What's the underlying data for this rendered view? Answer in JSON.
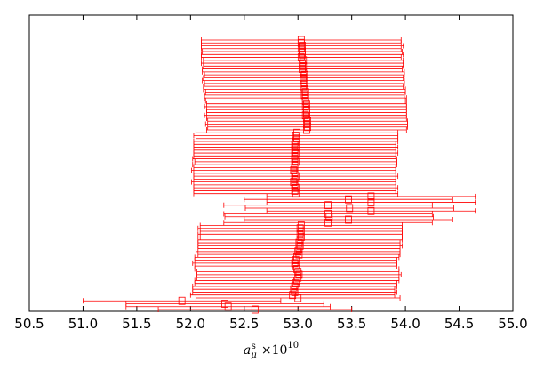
{
  "chart_data": {
    "type": "errorbar",
    "x_label": {
      "symbol": "a",
      "sub": "μ",
      "sup": "s",
      "factor": "×10",
      "exponent": "10"
    },
    "color": "#ff0000",
    "x": [
      53.03,
      53.03,
      53.04,
      53.03,
      53.04,
      53.04,
      53.03,
      53.05,
      53.04,
      53.05,
      53.04,
      53.05,
      53.06,
      53.05,
      53.05,
      53.06,
      53.05,
      53.06,
      53.07,
      53.06,
      53.07,
      53.07,
      53.08,
      53.07,
      53.08,
      53.08,
      53.07,
      53.08,
      53.09,
      53.08,
      53.09,
      53.08,
      52.99,
      52.98,
      52.99,
      52.98,
      52.97,
      52.98,
      52.97,
      52.98,
      52.97,
      52.97,
      52.98,
      52.97,
      52.97,
      52.96,
      52.97,
      52.98,
      52.97,
      52.96,
      52.97,
      52.98,
      52.97,
      52.98,
      53.68,
      53.47,
      53.68,
      53.28,
      53.48,
      53.68,
      53.28,
      53.29,
      53.47,
      53.28,
      53.03,
      53.02,
      53.03,
      53.02,
      53.03,
      53.02,
      53.01,
      53.02,
      53.01,
      53.0,
      53.01,
      52.99,
      52.98,
      52.97,
      52.98,
      52.99,
      53.0,
      53.01,
      53.0,
      52.99,
      52.98,
      52.97,
      52.96,
      52.97,
      52.95,
      53.0,
      51.92,
      52.32,
      52.35,
      52.6
    ],
    "xerr": [
      0.93,
      0.93,
      0.94,
      0.93,
      0.93,
      0.94,
      0.93,
      0.93,
      0.94,
      0.93,
      0.93,
      0.94,
      0.93,
      0.93,
      0.94,
      0.93,
      0.93,
      0.94,
      0.93,
      0.93,
      0.94,
      0.93,
      0.93,
      0.94,
      0.93,
      0.93,
      0.94,
      0.93,
      0.93,
      0.94,
      0.93,
      0.93,
      0.94,
      0.95,
      0.94,
      0.95,
      0.94,
      0.95,
      0.94,
      0.95,
      0.94,
      0.95,
      0.94,
      0.95,
      0.94,
      0.95,
      0.94,
      0.95,
      0.94,
      0.95,
      0.94,
      0.95,
      0.94,
      0.95,
      0.97,
      0.97,
      0.97,
      0.97,
      0.97,
      0.97,
      0.97,
      0.97,
      0.97,
      0.97,
      0.94,
      0.95,
      0.94,
      0.95,
      0.94,
      0.95,
      0.94,
      0.95,
      0.94,
      0.95,
      0.94,
      0.95,
      0.94,
      0.95,
      0.94,
      0.95,
      0.94,
      0.95,
      0.94,
      0.95,
      0.94,
      0.95,
      0.94,
      0.95,
      0.95,
      0.95,
      0.92,
      0.92,
      0.95,
      0.9
    ],
    "xlim": [
      50.5,
      55.0
    ],
    "xticks": [
      50.5,
      {
        "value": 51.0,
        "label": "51.0"
      },
      51.5,
      {
        "value": 52.0,
        "label": "52.0"
      },
      52.5,
      {
        "value": 53.0,
        "label": "53.0"
      },
      53.5,
      {
        "value": 54.0,
        "label": "54.0"
      },
      54.5,
      {
        "value": 55.0,
        "label": "55.0"
      }
    ]
  }
}
